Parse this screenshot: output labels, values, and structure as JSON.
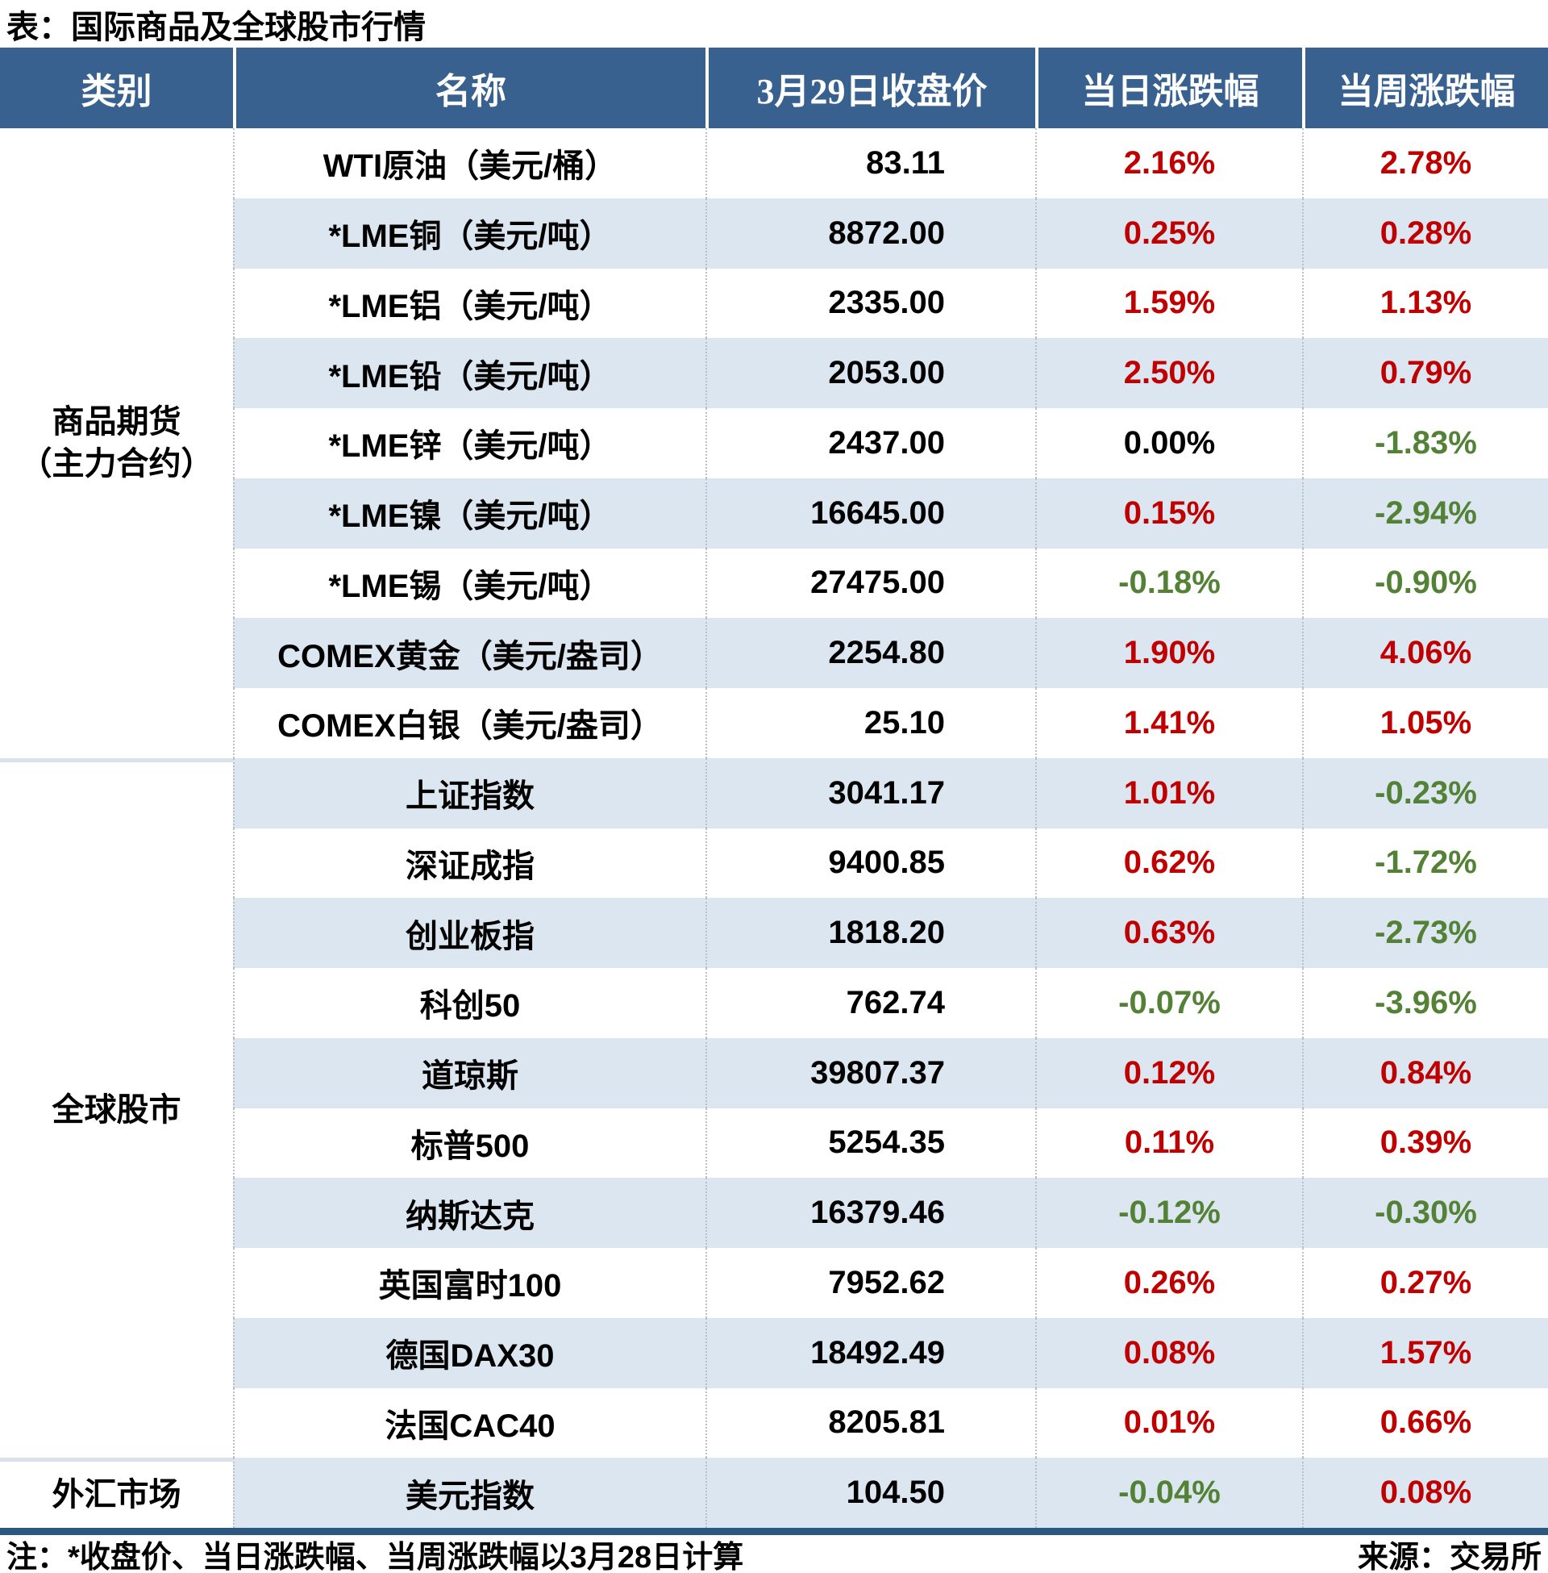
{
  "title": "表：国际商品及全球股市行情",
  "colors": {
    "header_bg": "#38618F",
    "stripe_bg": "#DCE6F1",
    "up_red": "#C00000",
    "down_green": "#538135",
    "bottom_bar": "#2C5880"
  },
  "table": {
    "headers": [
      "类别",
      "名称",
      "3月29日收盘价",
      "当日涨跌幅",
      "当周涨跌幅"
    ],
    "categories": [
      {
        "label": "商品期货\n（主力合约）"
      },
      {
        "label": "全球股市"
      },
      {
        "label": "外汇市场"
      }
    ],
    "rows": [
      {
        "name": "WTI原油（美元/桶）",
        "close": "83.11",
        "day": "2.16%",
        "day_color": "red",
        "week": "2.78%",
        "week_color": "red"
      },
      {
        "name": "*LME铜（美元/吨）",
        "close": "8872.00",
        "day": "0.25%",
        "day_color": "red",
        "week": "0.28%",
        "week_color": "red"
      },
      {
        "name": "*LME铝（美元/吨）",
        "close": "2335.00",
        "day": "1.59%",
        "day_color": "red",
        "week": "1.13%",
        "week_color": "red"
      },
      {
        "name": "*LME铅（美元/吨）",
        "close": "2053.00",
        "day": "2.50%",
        "day_color": "red",
        "week": "0.79%",
        "week_color": "red"
      },
      {
        "name": "*LME锌（美元/吨）",
        "close": "2437.00",
        "day": "0.00%",
        "day_color": "black",
        "week": "-1.83%",
        "week_color": "green"
      },
      {
        "name": "*LME镍（美元/吨）",
        "close": "16645.00",
        "day": "0.15%",
        "day_color": "red",
        "week": "-2.94%",
        "week_color": "green"
      },
      {
        "name": "*LME锡（美元/吨）",
        "close": "27475.00",
        "day": "-0.18%",
        "day_color": "green",
        "week": "-0.90%",
        "week_color": "green"
      },
      {
        "name": "COMEX黄金（美元/盎司）",
        "close": "2254.80",
        "day": "1.90%",
        "day_color": "red",
        "week": "4.06%",
        "week_color": "red"
      },
      {
        "name": "COMEX白银（美元/盎司）",
        "close": "25.10",
        "day": "1.41%",
        "day_color": "red",
        "week": "1.05%",
        "week_color": "red"
      },
      {
        "name": "上证指数",
        "close": "3041.17",
        "day": "1.01%",
        "day_color": "red",
        "week": "-0.23%",
        "week_color": "green"
      },
      {
        "name": "深证成指",
        "close": "9400.85",
        "day": "0.62%",
        "day_color": "red",
        "week": "-1.72%",
        "week_color": "green"
      },
      {
        "name": "创业板指",
        "close": "1818.20",
        "day": "0.63%",
        "day_color": "red",
        "week": "-2.73%",
        "week_color": "green"
      },
      {
        "name": "科创50",
        "close": "762.74",
        "day": "-0.07%",
        "day_color": "green",
        "week": "-3.96%",
        "week_color": "green"
      },
      {
        "name": "道琼斯",
        "close": "39807.37",
        "day": "0.12%",
        "day_color": "red",
        "week": "0.84%",
        "week_color": "red"
      },
      {
        "name": "标普500",
        "close": "5254.35",
        "day": "0.11%",
        "day_color": "red",
        "week": "0.39%",
        "week_color": "red"
      },
      {
        "name": "纳斯达克",
        "close": "16379.46",
        "day": "-0.12%",
        "day_color": "green",
        "week": "-0.30%",
        "week_color": "green"
      },
      {
        "name": "英国富时100",
        "close": "7952.62",
        "day": "0.26%",
        "day_color": "red",
        "week": "0.27%",
        "week_color": "red"
      },
      {
        "name": "德国DAX30",
        "close": "18492.49",
        "day": "0.08%",
        "day_color": "red",
        "week": "1.57%",
        "week_color": "red"
      },
      {
        "name": "法国CAC40",
        "close": "8205.81",
        "day": "0.01%",
        "day_color": "red",
        "week": "0.66%",
        "week_color": "red"
      },
      {
        "name": "美元指数",
        "close": "104.50",
        "day": "-0.04%",
        "day_color": "green",
        "week": "0.08%",
        "week_color": "red"
      }
    ]
  },
  "footer": {
    "note": "注：*收盘价、当日涨跌幅、当周涨跌幅以3月28日计算",
    "source": "来源：交易所"
  }
}
